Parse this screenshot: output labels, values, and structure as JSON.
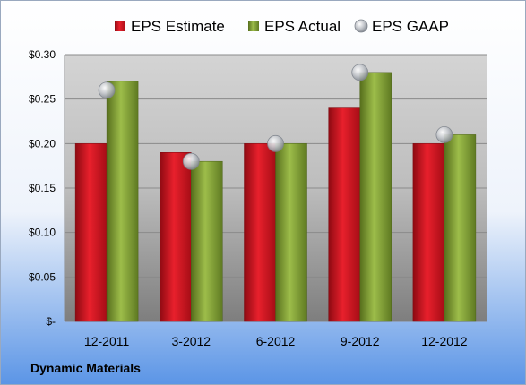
{
  "company": "Dynamic Materials",
  "chart_data": {
    "type": "bar",
    "categories": [
      "12-2011",
      "3-2012",
      "6-2012",
      "9-2012",
      "12-2012"
    ],
    "series": [
      {
        "name": "EPS Estimate",
        "kind": "bar",
        "color": "#c8101e",
        "values": [
          0.2,
          0.19,
          0.2,
          0.24,
          0.2
        ]
      },
      {
        "name": "EPS Actual",
        "kind": "bar",
        "color": "#7a9a2e",
        "values": [
          0.27,
          0.18,
          0.2,
          0.28,
          0.21
        ]
      },
      {
        "name": "EPS GAAP",
        "kind": "marker",
        "color": "#b8bcc2",
        "values": [
          0.26,
          0.18,
          0.2,
          0.28,
          0.21
        ]
      }
    ],
    "y_ticks": [
      {
        "value": 0,
        "label": "$-"
      },
      {
        "value": 0.05,
        "label": "$0.05"
      },
      {
        "value": 0.1,
        "label": "$0.10"
      },
      {
        "value": 0.15,
        "label": "$0.15"
      },
      {
        "value": 0.2,
        "label": "$0.20"
      },
      {
        "value": 0.25,
        "label": "$0.25"
      },
      {
        "value": 0.3,
        "label": "$0.30"
      }
    ],
    "ylim": [
      0,
      0.3
    ],
    "grid": true,
    "legend_position": "top"
  }
}
